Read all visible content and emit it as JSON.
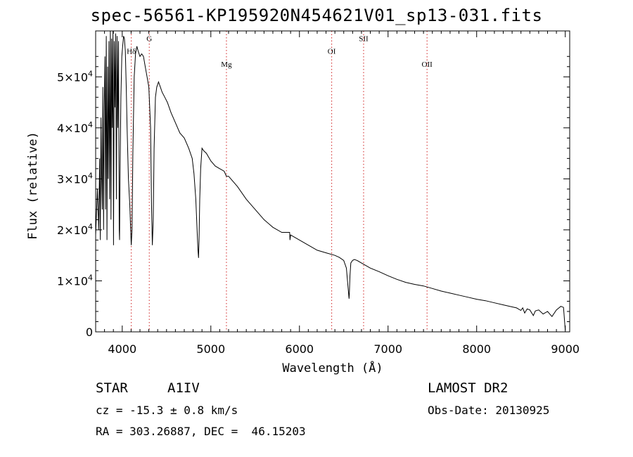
{
  "chart_data": {
    "type": "line",
    "title": "spec-56561-KP195920N454621V01_sp13-031.fits",
    "xlabel": "Wavelength (Å)",
    "ylabel": "Flux (relative)",
    "xlim": [
      3700,
      9050
    ],
    "ylim": [
      0,
      59000
    ],
    "x_ticks": [
      4000,
      5000,
      6000,
      7000,
      8000,
      9000
    ],
    "y_ticks": [
      {
        "value": 0,
        "mantissa": "0",
        "exponent": ""
      },
      {
        "value": 10000,
        "mantissa": "1×10",
        "exponent": "4"
      },
      {
        "value": 20000,
        "mantissa": "2×10",
        "exponent": "4"
      },
      {
        "value": 30000,
        "mantissa": "3×10",
        "exponent": "4"
      },
      {
        "value": 40000,
        "mantissa": "4×10",
        "exponent": "4"
      },
      {
        "value": 50000,
        "mantissa": "5×10",
        "exponent": "4"
      }
    ],
    "spectral_lines": [
      {
        "label": "Hδ",
        "x": 4102,
        "label_y": 54500
      },
      {
        "label": "G",
        "x": 4305,
        "label_y": 57000
      },
      {
        "label": "Mg",
        "x": 5176,
        "label_y": 52000
      },
      {
        "label": "OI",
        "x": 6364,
        "label_y": 54500
      },
      {
        "label": "SII",
        "x": 6724,
        "label_y": 57000
      },
      {
        "label": "OII",
        "x": 7440,
        "label_y": 52000
      }
    ],
    "series": [
      {
        "x": [
          3700,
          3720,
          3735,
          3745,
          3752,
          3760,
          3768,
          3775,
          3782,
          3790,
          3797,
          3805,
          3812,
          3820,
          3828,
          3835,
          3842,
          3850,
          3858,
          3866,
          3873,
          3880,
          3888,
          3895,
          3902,
          3910,
          3918,
          3926,
          3934,
          3942,
          3950,
          3958,
          3966,
          3970,
          3975,
          3985,
          3995,
          4005,
          4015,
          4025,
          4035,
          4045,
          4055,
          4070,
          4085,
          4095,
          4102,
          4110,
          4120,
          4135,
          4150,
          4165,
          4180,
          4200,
          4220,
          4240,
          4260,
          4280,
          4300,
          4320,
          4330,
          4340,
          4350,
          4360,
          4375,
          4390,
          4410,
          4430,
          4450,
          4480,
          4510,
          4550,
          4600,
          4650,
          4700,
          4750,
          4790,
          4810,
          4830,
          4845,
          4855,
          4861,
          4867,
          4875,
          4885,
          4900,
          4920,
          4950,
          5000,
          5050,
          5100,
          5150,
          5176,
          5200,
          5300,
          5400,
          5500,
          5600,
          5700,
          5800,
          5889,
          5893,
          5900,
          6000,
          6100,
          6200,
          6300,
          6400,
          6450,
          6500,
          6530,
          6550,
          6560,
          6563,
          6570,
          6580,
          6600,
          6620,
          6650,
          6700,
          6800,
          6900,
          7000,
          7100,
          7200,
          7300,
          7400,
          7500,
          7600,
          7700,
          7800,
          7900,
          8000,
          8100,
          8200,
          8300,
          8400,
          8450,
          8498,
          8520,
          8542,
          8570,
          8600,
          8640,
          8662,
          8700,
          8750,
          8800,
          8850,
          8900,
          8950,
          8980,
          9000
        ],
        "values": [
          19000,
          28000,
          20000,
          34000,
          18000,
          42000,
          30000,
          24000,
          48000,
          20000,
          44000,
          54000,
          24000,
          58000,
          18000,
          52000,
          30000,
          57000,
          26000,
          59000,
          22000,
          57500,
          40000,
          59000,
          17000,
          57000,
          44000,
          58500,
          26000,
          58000,
          40000,
          57000,
          20000,
          18000,
          30000,
          46000,
          54000,
          56000,
          58000,
          57500,
          55000,
          48000,
          40000,
          30000,
          25000,
          20000,
          17000,
          20000,
          35000,
          50000,
          54500,
          56000,
          55000,
          54000,
          54500,
          54000,
          52000,
          50000,
          48000,
          40000,
          25000,
          17000,
          22000,
          36000,
          46000,
          48000,
          49000,
          48000,
          47000,
          46000,
          45000,
          43000,
          41000,
          39000,
          38000,
          36000,
          34000,
          31000,
          26000,
          20000,
          16000,
          14500,
          18000,
          26000,
          32000,
          36000,
          35500,
          35000,
          33500,
          32500,
          32000,
          31500,
          30500,
          30500,
          28500,
          26000,
          24000,
          22000,
          20500,
          19500,
          19500,
          18000,
          19000,
          18000,
          17000,
          16000,
          15500,
          15000,
          14600,
          14000,
          12500,
          8500,
          6500,
          7500,
          11000,
          13500,
          14000,
          14200,
          14000,
          13500,
          12500,
          11800,
          11000,
          10300,
          9700,
          9300,
          9000,
          8500,
          8000,
          7600,
          7200,
          6800,
          6400,
          6100,
          5700,
          5300,
          4900,
          4700,
          4200,
          4700,
          3700,
          4500,
          4300,
          3200,
          4100,
          4300,
          3500,
          4000,
          3000,
          4300,
          5000,
          4800,
          300
        ]
      }
    ]
  },
  "info": {
    "object_class": "STAR",
    "subclass": "A1IV",
    "survey": "LAMOST DR2",
    "obs_date": "Obs-Date: 20130925",
    "redshift": "cz = -15.3 ± 0.8 km/s",
    "coords": "RA = 303.26887, DEC =  46.15203"
  }
}
